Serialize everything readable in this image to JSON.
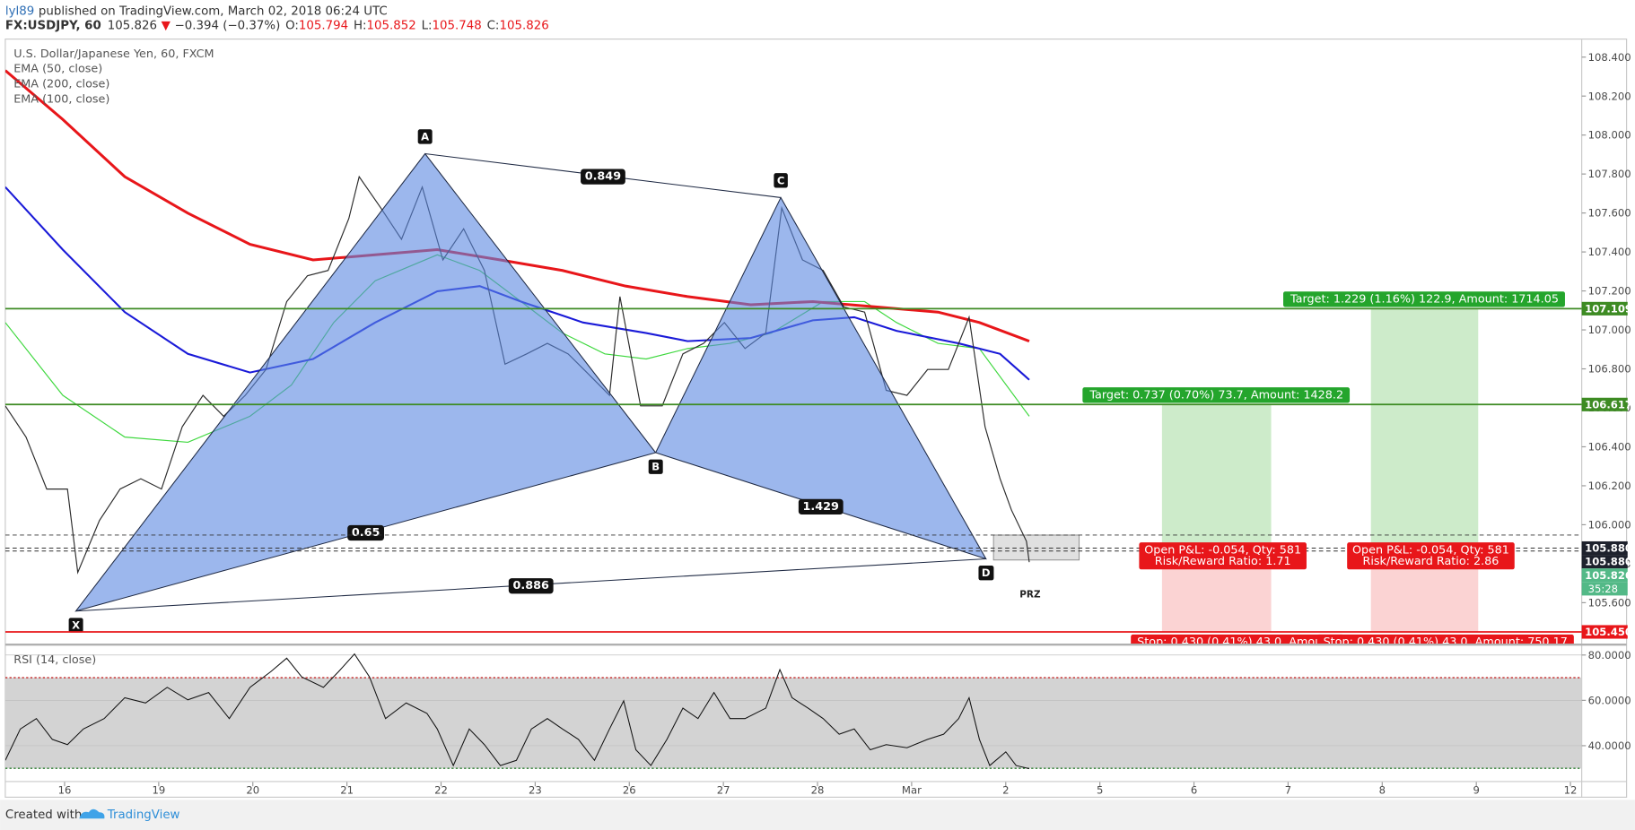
{
  "header": {
    "author": "lyl89",
    "published": "published on TradingView.com, March 02, 2018 06:24 UTC",
    "symbol": "FX:USDJPY, 60",
    "last": 105.826,
    "change": "−0.394 (−0.37%)",
    "ohlc": [
      {
        "label": "O:",
        "value": 105.794
      },
      {
        "label": "H:",
        "value": 105.852
      },
      {
        "label": "L:",
        "value": 105.748
      },
      {
        "label": "C:",
        "value": 105.826
      }
    ]
  },
  "chart_data": [
    {
      "type": "line",
      "title": "U.S. Dollar/Japanese Yen, 60, FXCM",
      "xlim": [
        -0.63,
        16.12
      ],
      "ylim": [
        105.39,
        108.49
      ],
      "yticks": [
        {
          "value": 105.6,
          "label": "105.600"
        },
        {
          "value": 105.8,
          "label": "105.800"
        },
        {
          "value": 106.0,
          "label": "106.000"
        },
        {
          "value": 106.2,
          "label": "106.200"
        },
        {
          "value": 106.4,
          "label": "106.400"
        },
        {
          "value": 106.6,
          "label": "106.600"
        },
        {
          "value": 106.8,
          "label": "106.800"
        },
        {
          "value": 107.0,
          "label": "107.000"
        },
        {
          "value": 107.2,
          "label": "107.200"
        },
        {
          "value": 107.4,
          "label": "107.400"
        },
        {
          "value": 107.6,
          "label": "107.600"
        },
        {
          "value": 107.8,
          "label": "107.800"
        },
        {
          "value": 108.0,
          "label": "108.000"
        },
        {
          "value": 108.2,
          "label": "108.200"
        },
        {
          "value": 108.4,
          "label": "108.400"
        }
      ],
      "series": [
        {
          "color": "#2b2b2b",
          "x": [
            -0.63,
            -0.41,
            -0.19,
            0.03,
            0.14,
            0.37,
            0.59,
            0.81,
            1.03,
            1.25,
            1.47,
            1.69,
            1.92,
            2.14,
            2.36,
            2.58,
            2.8,
            3.02,
            3.13,
            3.36,
            3.58,
            3.8,
            4.02,
            4.24,
            4.46,
            4.68,
            4.91,
            5.13,
            5.35,
            5.57,
            5.79,
            5.9,
            6.12,
            6.35,
            6.57,
            6.79,
            7.01,
            7.23,
            7.45,
            7.62,
            7.84,
            8.06,
            8.28,
            8.5,
            8.73,
            8.95,
            9.17,
            9.39,
            9.61,
            9.78,
            9.94,
            10.06,
            10.22,
            10.25
          ],
          "values": [
            106.61,
            106.45,
            106.183,
            106.183,
            105.755,
            106.022,
            106.183,
            106.236,
            106.183,
            106.503,
            106.664,
            106.557,
            106.664,
            106.797,
            107.145,
            107.278,
            107.305,
            107.572,
            107.786,
            107.626,
            107.465,
            107.733,
            107.359,
            107.519,
            107.305,
            106.824,
            106.877,
            106.931,
            106.877,
            106.771,
            106.664,
            107.171,
            106.61,
            106.61,
            106.877,
            106.931,
            107.038,
            106.904,
            106.984,
            107.626,
            107.359,
            107.305,
            107.118,
            107.091,
            106.69,
            106.664,
            106.797,
            106.797,
            107.065,
            106.503,
            106.236,
            106.076,
            105.915,
            105.808
          ]
        },
        {
          "name": "EMA (50, close)",
          "color": "#3fd83f",
          "x": [
            -0.63,
            -0.02,
            0.64,
            1.31,
            1.97,
            2.41,
            2.86,
            3.3,
            3.96,
            4.41,
            4.85,
            5.29,
            5.74,
            6.18,
            6.62,
            7.07,
            7.51,
            8.06,
            8.5,
            8.84,
            9.28,
            9.72,
            10.25
          ],
          "values": [
            107.038,
            106.664,
            106.45,
            106.423,
            106.557,
            106.717,
            107.038,
            107.252,
            107.385,
            107.305,
            107.145,
            106.984,
            106.877,
            106.851,
            106.904,
            106.931,
            106.984,
            107.145,
            107.145,
            107.038,
            106.931,
            106.904,
            106.557
          ]
        },
        {
          "name": "EMA (200, close)",
          "color": "#e8161a",
          "x": [
            -0.63,
            -0.02,
            0.64,
            1.31,
            1.97,
            2.64,
            3.3,
            3.96,
            4.63,
            5.29,
            5.96,
            6.62,
            7.29,
            7.95,
            8.62,
            9.28,
            9.72,
            10.25
          ],
          "values": [
            108.331,
            108.08,
            107.786,
            107.599,
            107.439,
            107.359,
            107.385,
            107.412,
            107.359,
            107.305,
            107.225,
            107.171,
            107.129,
            107.145,
            107.118,
            107.091,
            107.038,
            106.942
          ]
        },
        {
          "name": "EMA (100, close)",
          "color": "#1a1ad8",
          "x": [
            -0.63,
            -0.02,
            0.64,
            1.31,
            1.97,
            2.64,
            3.3,
            3.96,
            4.41,
            4.85,
            5.51,
            6.18,
            6.62,
            7.29,
            7.95,
            8.39,
            8.84,
            9.5,
            9.94,
            10.25
          ],
          "values": [
            107.733,
            107.412,
            107.091,
            106.877,
            106.781,
            106.851,
            107.038,
            107.198,
            107.225,
            107.145,
            107.038,
            106.984,
            106.942,
            106.958,
            107.049,
            107.065,
            106.995,
            106.931,
            106.877,
            106.744
          ]
        }
      ],
      "levels": [
        {
          "value": 107.109,
          "color": "#3d8b23"
        },
        {
          "value": 106.617,
          "color": "#3d8b23"
        },
        {
          "value": 105.45,
          "color": "#e8161a"
        }
      ],
      "dashed_levels": [
        105.947,
        105.88,
        105.865
      ],
      "price_labels": [
        {
          "value": 107.109,
          "label": "107.109",
          "color": "#3d8b23"
        },
        {
          "value": 106.617,
          "label": "106.617",
          "color": "#3d8b23"
        },
        {
          "value": 105.88,
          "label": "105.880",
          "color": "#1e222d"
        },
        {
          "value": 105.88,
          "label": "105.880",
          "color": "#1e222d"
        },
        {
          "value": 105.826,
          "label": "105.826",
          "color": "#53b987",
          "countdown": "35:28"
        },
        {
          "value": 105.45,
          "label": "105.450",
          "color": "#e8161a"
        }
      ],
      "pattern": {
        "points": [
          {
            "label": "X",
            "x": 0.12,
            "y": 105.557
          },
          {
            "label": "A",
            "x": 3.83,
            "y": 107.904
          },
          {
            "label": "B",
            "x": 6.28,
            "y": 106.37
          },
          {
            "label": "C",
            "x": 7.61,
            "y": 107.679
          },
          {
            "label": "D",
            "x": 9.79,
            "y": 105.825
          }
        ],
        "ratios": {
          "AC": 0.849,
          "XB": 0.65,
          "BD": 1.429,
          "XD": 0.886
        }
      },
      "zone": {
        "label": "PRZ",
        "x": [
          9.87,
          10.78
        ],
        "y": [
          105.819,
          105.947
        ]
      },
      "positions": [
        {
          "x": [
            11.66,
            12.82
          ],
          "target": 106.617,
          "entry": 105.88,
          "stop": 105.45,
          "target_label": "Target: 0.737 (0.70%) 73.7, Amount: 1428.2",
          "pnl_label": "Open P&L: -0.054, Qty: 581",
          "rr_label": "Risk/Reward Ratio: 1.71",
          "stop_label": "Stop: 0.430 (0.41%) 43.0, Amount:"
        },
        {
          "x": [
            13.88,
            15.02
          ],
          "target": 107.109,
          "entry": 105.88,
          "stop": 105.45,
          "target_label": "Target: 1.229 (1.16%) 122.9, Amount: 1714.05",
          "pnl_label": "Open P&L: -0.054, Qty: 581",
          "rr_label": "Risk/Reward Ratio: 2.86",
          "stop_label": "Stop: 0.430 (0.41%) 43.0, Amount: 750.17"
        }
      ]
    },
    {
      "type": "line",
      "title": "RSI (14, close)",
      "xlim": [
        -0.63,
        16.12
      ],
      "ylim": [
        24.4,
        83.2
      ],
      "yticks": [
        {
          "value": 40,
          "label": "40.0000"
        },
        {
          "value": 60,
          "label": "60.0000"
        },
        {
          "value": 80,
          "label": "80.0000"
        }
      ],
      "bands": [
        30,
        70
      ],
      "xticks": [
        {
          "value": 0,
          "label": "16"
        },
        {
          "value": 1,
          "label": "19"
        },
        {
          "value": 2,
          "label": "20"
        },
        {
          "value": 3,
          "label": "21"
        },
        {
          "value": 4,
          "label": "22"
        },
        {
          "value": 5,
          "label": "23"
        },
        {
          "value": 6,
          "label": "26"
        },
        {
          "value": 7,
          "label": "27"
        },
        {
          "value": 8,
          "label": "28"
        },
        {
          "value": 9,
          "label": "Mar"
        },
        {
          "value": 10,
          "label": "2"
        },
        {
          "value": 11,
          "label": "5"
        },
        {
          "value": 12,
          "label": "6"
        },
        {
          "value": 13,
          "label": "7"
        },
        {
          "value": 14,
          "label": "8"
        },
        {
          "value": 15,
          "label": "9"
        },
        {
          "value": 16,
          "label": "12"
        }
      ],
      "series": [
        {
          "color": "#111",
          "x": [
            -0.63,
            -0.47,
            -0.3,
            -0.13,
            0.03,
            0.2,
            0.42,
            0.64,
            0.86,
            1.09,
            1.31,
            1.53,
            1.75,
            1.97,
            2.19,
            2.36,
            2.52,
            2.75,
            2.91,
            3.08,
            3.24,
            3.41,
            3.63,
            3.85,
            3.96,
            4.13,
            4.3,
            4.46,
            4.63,
            4.8,
            4.96,
            5.13,
            5.29,
            5.46,
            5.63,
            5.79,
            5.94,
            6.07,
            6.23,
            6.4,
            6.57,
            6.73,
            6.9,
            7.07,
            7.23,
            7.45,
            7.6,
            7.73,
            7.9,
            8.06,
            8.23,
            8.39,
            8.56,
            8.73,
            8.95,
            9.17,
            9.34,
            9.5,
            9.61,
            9.72,
            9.83,
            10.0,
            10.11,
            10.25
          ],
          "values": [
            33.56,
            47.35,
            51.95,
            42.76,
            40.46,
            47.35,
            51.95,
            61.15,
            58.85,
            65.75,
            60.23,
            63.45,
            51.95,
            65.75,
            72.64,
            78.62,
            70.34,
            65.75,
            72.64,
            80.46,
            70.34,
            51.95,
            58.85,
            54.25,
            47.35,
            31.26,
            47.35,
            40.46,
            31.26,
            33.56,
            47.35,
            51.95,
            47.35,
            42.76,
            33.56,
            47.35,
            59.77,
            38.16,
            31.26,
            42.76,
            56.55,
            51.95,
            63.45,
            51.95,
            51.95,
            56.55,
            73.56,
            61.15,
            56.55,
            51.95,
            45.06,
            47.35,
            38.16,
            40.46,
            39.08,
            42.76,
            45.06,
            51.95,
            61.15,
            42.76,
            31.26,
            37.24,
            31.26,
            29.88
          ]
        }
      ]
    }
  ],
  "footer": {
    "created": "Created with",
    "brand": "TradingView"
  }
}
